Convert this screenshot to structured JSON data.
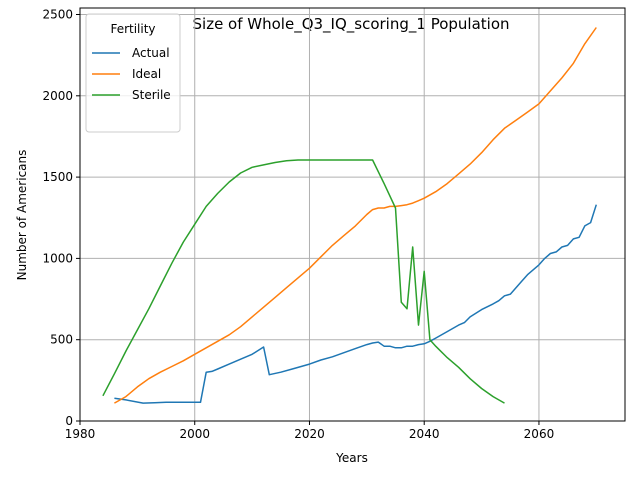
{
  "chart_data": {
    "type": "line",
    "title": "Size of Whole_Q3_IQ_scoring_1 Population",
    "xlabel": "Years",
    "ylabel": "Number of Americans",
    "xlim": [
      1980,
      2075
    ],
    "ylim": [
      0,
      2540
    ],
    "xticks": [
      1980,
      2000,
      2020,
      2040,
      2060
    ],
    "yticks": [
      0,
      500,
      1000,
      1500,
      2000,
      2500
    ],
    "grid": true,
    "legend": {
      "title": "Fertility",
      "position": "top-left"
    },
    "series": [
      {
        "name": "Actual",
        "color": "#1f77b4",
        "x": [
          1986,
          1988,
          1991,
          1993,
          1995,
          1998,
          2001,
          2002,
          2003,
          2004,
          2006,
          2008,
          2010,
          2012,
          2013,
          2015,
          2017,
          2020,
          2022,
          2024,
          2026,
          2028,
          2030,
          2031,
          2032,
          2033,
          2034,
          2035,
          2036,
          2037,
          2038,
          2039,
          2040,
          2041,
          2042,
          2044,
          2046,
          2047,
          2048,
          2050,
          2052,
          2053,
          2054,
          2055,
          2056,
          2057,
          2058,
          2059,
          2060,
          2061,
          2062,
          2063,
          2064,
          2065,
          2066,
          2067,
          2068,
          2069,
          2070
        ],
        "y": [
          140,
          130,
          110,
          112,
          115,
          115,
          115,
          300,
          305,
          320,
          350,
          380,
          410,
          455,
          285,
          300,
          320,
          350,
          375,
          395,
          420,
          445,
          470,
          480,
          485,
          460,
          460,
          450,
          450,
          460,
          460,
          470,
          475,
          490,
          510,
          550,
          590,
          605,
          640,
          685,
          720,
          740,
          770,
          780,
          820,
          860,
          900,
          930,
          960,
          1000,
          1030,
          1040,
          1070,
          1080,
          1120,
          1130,
          1200,
          1220,
          1330
        ]
      },
      {
        "name": "Ideal",
        "color": "#ff7f0e",
        "x": [
          1986,
          1988,
          1990,
          1992,
          1994,
          1996,
          1998,
          2000,
          2002,
          2004,
          2006,
          2008,
          2010,
          2012,
          2014,
          2016,
          2018,
          2020,
          2022,
          2024,
          2026,
          2028,
          2030,
          2031,
          2032,
          2033,
          2034,
          2035,
          2036,
          2037,
          2038,
          2039,
          2040,
          2042,
          2044,
          2046,
          2048,
          2050,
          2052,
          2054,
          2056,
          2058,
          2060,
          2062,
          2064,
          2066,
          2068,
          2070
        ],
        "y": [
          110,
          150,
          210,
          260,
          300,
          335,
          370,
          410,
          450,
          490,
          530,
          580,
          640,
          700,
          760,
          820,
          880,
          940,
          1010,
          1080,
          1140,
          1200,
          1270,
          1300,
          1310,
          1310,
          1320,
          1320,
          1325,
          1330,
          1340,
          1355,
          1370,
          1410,
          1460,
          1520,
          1580,
          1650,
          1730,
          1800,
          1850,
          1900,
          1950,
          2030,
          2110,
          2200,
          2320,
          2420
        ]
      },
      {
        "name": "Sterile",
        "color": "#2ca02c",
        "x": [
          1984,
          1986,
          1988,
          1990,
          1992,
          1994,
          1996,
          1998,
          2000,
          2002,
          2004,
          2006,
          2008,
          2010,
          2012,
          2014,
          2016,
          2018,
          2020,
          2022,
          2024,
          2026,
          2028,
          2030,
          2031,
          2033,
          2035,
          2036,
          2037,
          2038,
          2039,
          2040,
          2041,
          2042,
          2044,
          2046,
          2048,
          2050,
          2052,
          2054
        ],
        "y": [
          155,
          290,
          430,
          560,
          690,
          830,
          970,
          1100,
          1210,
          1320,
          1400,
          1470,
          1525,
          1560,
          1575,
          1590,
          1600,
          1605,
          1605,
          1605,
          1605,
          1605,
          1605,
          1605,
          1605,
          1460,
          1310,
          730,
          690,
          1070,
          590,
          920,
          500,
          460,
          390,
          330,
          260,
          200,
          150,
          110
        ]
      }
    ]
  }
}
